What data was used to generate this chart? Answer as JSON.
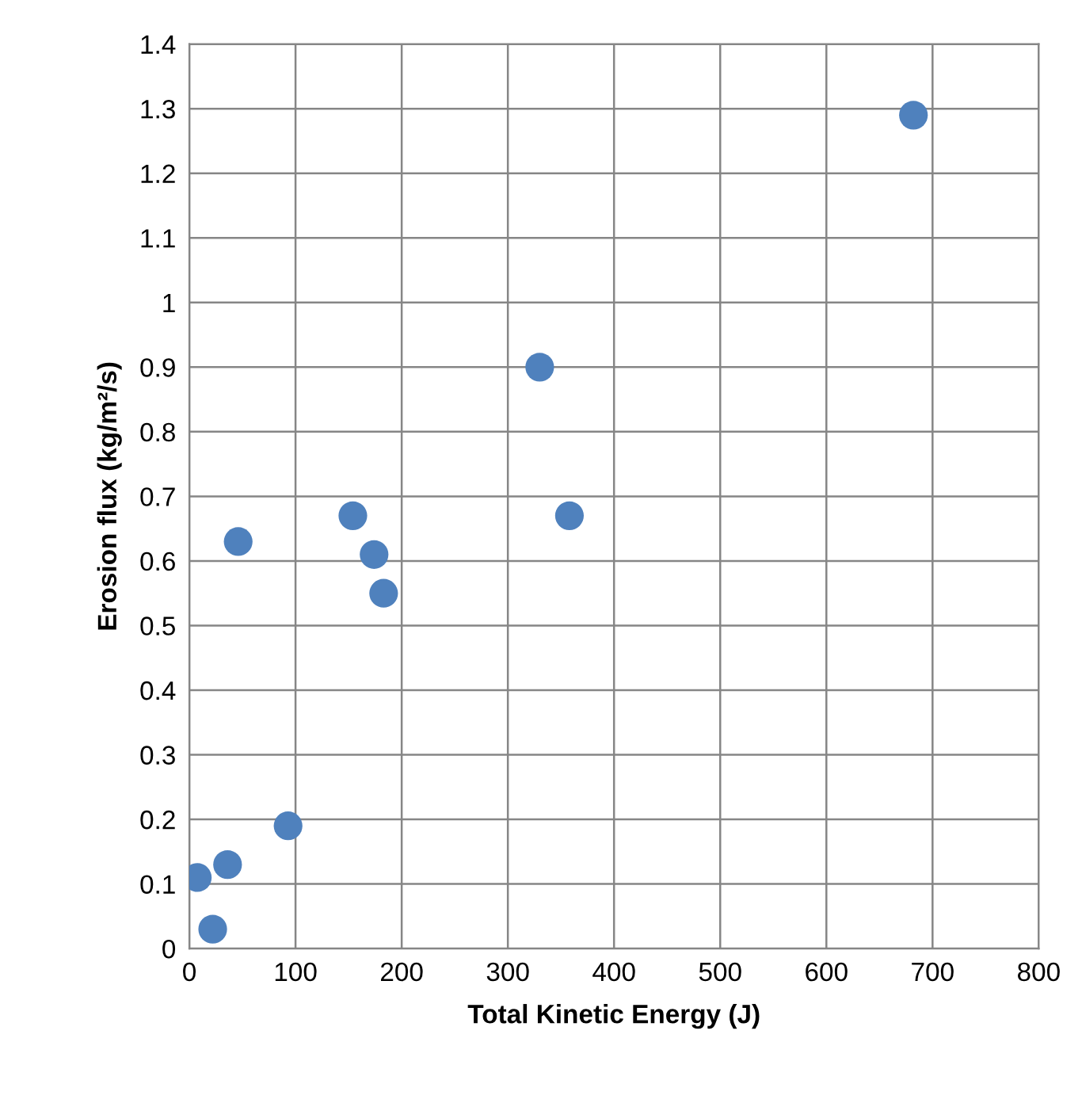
{
  "chart_data": {
    "type": "scatter",
    "xlabel": "Total Kinetic Energy (J)",
    "ylabel": "Erosion flux (kg/m²/s)",
    "series": [
      {
        "color": "#4f81bd",
        "x": [
          7.5,
          22,
          36,
          46,
          93,
          154,
          174,
          183,
          330,
          358,
          682
        ],
        "values": [
          0.11,
          0.03,
          0.13,
          0.63,
          0.19,
          0.67,
          0.61,
          0.55,
          0.9,
          0.67,
          1.29
        ]
      }
    ],
    "xlim": [
      0,
      800
    ],
    "xticks": [
      0,
      100,
      200,
      300,
      400,
      500,
      600,
      700,
      800
    ],
    "ylim": [
      0,
      1.4
    ],
    "yticks": [
      0,
      0.1,
      0.2,
      0.3,
      0.4,
      0.5,
      0.6,
      0.7,
      0.8,
      0.9,
      1,
      1.1,
      1.2,
      1.3,
      1.4
    ],
    "grid": true,
    "marker": "circle",
    "legend": false
  }
}
